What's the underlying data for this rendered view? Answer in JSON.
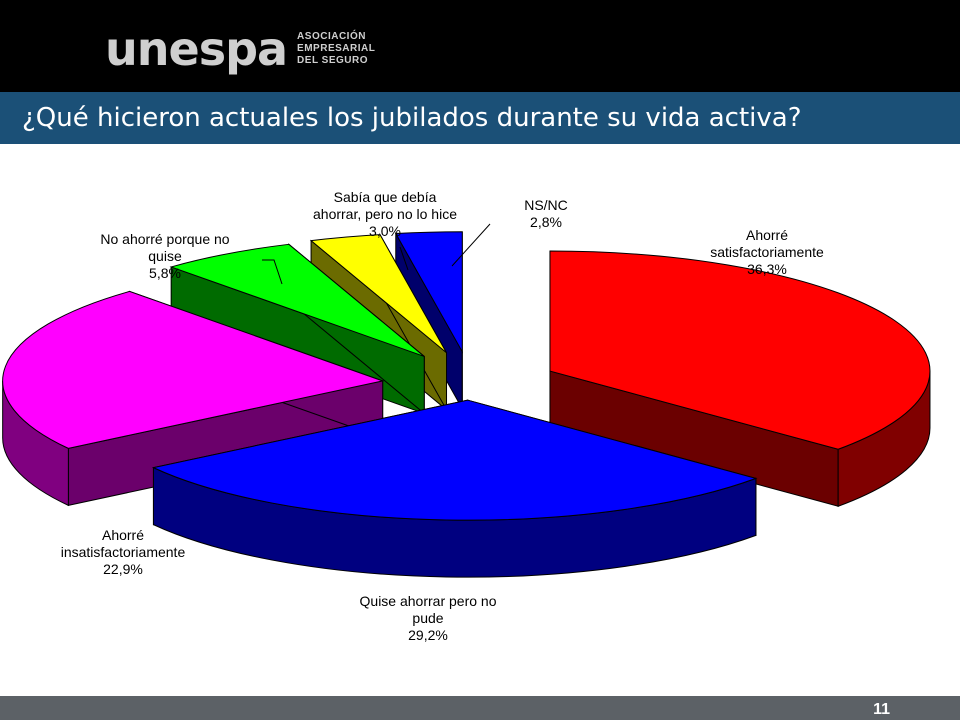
{
  "header": {
    "logo_text": "UNESPA",
    "logo_subtitle": [
      "ASOCIACIÓN",
      "EMPRESARIAL",
      "DEL SEGURO"
    ],
    "title": "¿Qué hicieron actuales los jubilados durante su vida activa?"
  },
  "footer": {
    "page_number": "11"
  },
  "chart_data": {
    "type": "pie",
    "style": "3d-exploded",
    "title": "",
    "slices": [
      {
        "label": [
          "Ahorré",
          "satisfactoriamente"
        ],
        "value_text": "36,3%",
        "value": 36.3,
        "color": "#ff0000"
      },
      {
        "label": [
          "Quise ahorrar pero no",
          "pude"
        ],
        "value_text": "29,2%",
        "value": 29.2,
        "color": "#0000ff"
      },
      {
        "label": [
          "Ahorré",
          "insatisfactoriamente"
        ],
        "value_text": "22,9%",
        "value": 22.9,
        "color": "#ff00ff"
      },
      {
        "label": [
          "No ahorré porque no",
          "quise"
        ],
        "value_text": "5,8%",
        "value": 5.8,
        "color": "#00ff00"
      },
      {
        "label": [
          "Sabía que debía",
          "ahorrar, pero no lo hice"
        ],
        "value_text": "3,0%",
        "value": 3.0,
        "color": "#ffff00"
      },
      {
        "label": [
          "NS/NC"
        ],
        "value_text": "2,8%",
        "value": 2.8,
        "color": "#0000ff"
      }
    ]
  }
}
